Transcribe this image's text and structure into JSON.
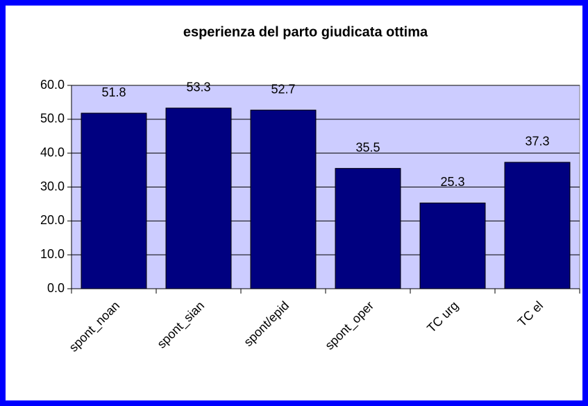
{
  "chart_data": {
    "type": "bar",
    "title": "esperienza del parto giudicata ottima",
    "categories": [
      "spont_noan",
      "spont_sian",
      "spont/epid",
      "spont_oper",
      "TC urg",
      "TC el"
    ],
    "values": [
      51.8,
      53.3,
      52.7,
      35.5,
      25.3,
      37.3
    ],
    "color": "#000080",
    "plot_background": "#ccccff",
    "ylim": [
      0,
      60
    ],
    "yticks": [
      {
        "value": 0,
        "label": "0.0"
      },
      {
        "value": 10,
        "label": "10.0"
      },
      {
        "value": 20,
        "label": "20.0"
      },
      {
        "value": 30,
        "label": "30.0"
      },
      {
        "value": 40,
        "label": "40.0"
      },
      {
        "value": 50,
        "label": "50.0"
      },
      {
        "value": 60,
        "label": "60.0"
      }
    ],
    "grid": true
  }
}
